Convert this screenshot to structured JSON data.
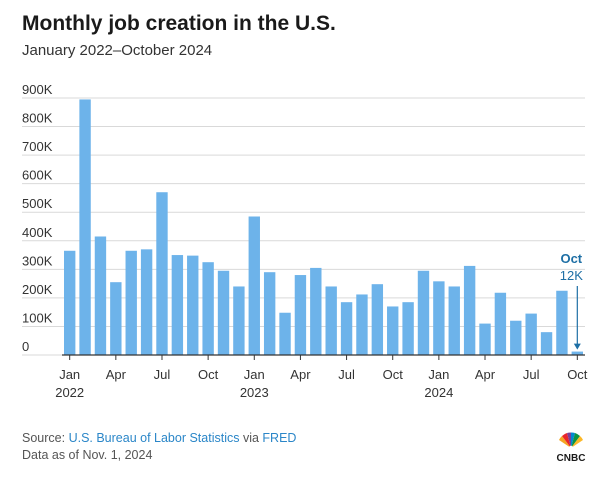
{
  "title": "Monthly job creation in the U.S.",
  "subtitle": "January 2022–October 2024",
  "source": {
    "prefix": "Source: ",
    "org": "U.S. Bureau of Labor Statistics",
    "via": " via ",
    "db": "FRED",
    "asof": "Data as of Nov. 1, 2024"
  },
  "logo_text": "CNBC",
  "annotation": {
    "month": "Oct",
    "value": "12K"
  },
  "colors": {
    "bar": "#6db3ea",
    "annotation": "#1e6fa5",
    "gridline": "#d9d9d9",
    "axis": "#333333"
  },
  "chart_data": {
    "type": "bar",
    "title": "Monthly job creation in the U.S.",
    "subtitle": "January 2022–October 2024",
    "unit": "thousands of jobs",
    "ylim": [
      0,
      900
    ],
    "yticks": [
      0,
      100,
      200,
      300,
      400,
      500,
      600,
      700,
      800,
      900
    ],
    "ytick_labels": [
      "0",
      "100K",
      "200K",
      "300K",
      "400K",
      "500K",
      "600K",
      "700K",
      "800K",
      "900K"
    ],
    "grid": true,
    "categories": [
      "Jan 2022",
      "Feb 2022",
      "Mar 2022",
      "Apr 2022",
      "May 2022",
      "Jun 2022",
      "Jul 2022",
      "Aug 2022",
      "Sep 2022",
      "Oct 2022",
      "Nov 2022",
      "Dec 2022",
      "Jan 2023",
      "Feb 2023",
      "Mar 2023",
      "Apr 2023",
      "May 2023",
      "Jun 2023",
      "Jul 2023",
      "Aug 2023",
      "Sep 2023",
      "Oct 2023",
      "Nov 2023",
      "Dec 2023",
      "Jan 2024",
      "Feb 2024",
      "Mar 2024",
      "Apr 2024",
      "May 2024",
      "Jun 2024",
      "Jul 2024",
      "Aug 2024",
      "Sep 2024",
      "Oct 2024"
    ],
    "values": [
      365,
      895,
      415,
      255,
      365,
      370,
      570,
      350,
      348,
      325,
      295,
      240,
      485,
      290,
      148,
      280,
      305,
      240,
      185,
      212,
      248,
      170,
      185,
      295,
      258,
      240,
      312,
      110,
      218,
      120,
      145,
      80,
      225,
      12
    ],
    "tick_positions": [
      0,
      3,
      6,
      9,
      12,
      15,
      18,
      21,
      24,
      27,
      30,
      33
    ],
    "tick_labels": [
      "Jan",
      "Apr",
      "Jul",
      "Oct",
      "Jan",
      "Apr",
      "Jul",
      "Oct",
      "Jan",
      "Apr",
      "Jul",
      "Oct"
    ],
    "year_labels": [
      {
        "index": 0,
        "label": "2022"
      },
      {
        "index": 12,
        "label": "2023"
      },
      {
        "index": 24,
        "label": "2024"
      }
    ]
  }
}
